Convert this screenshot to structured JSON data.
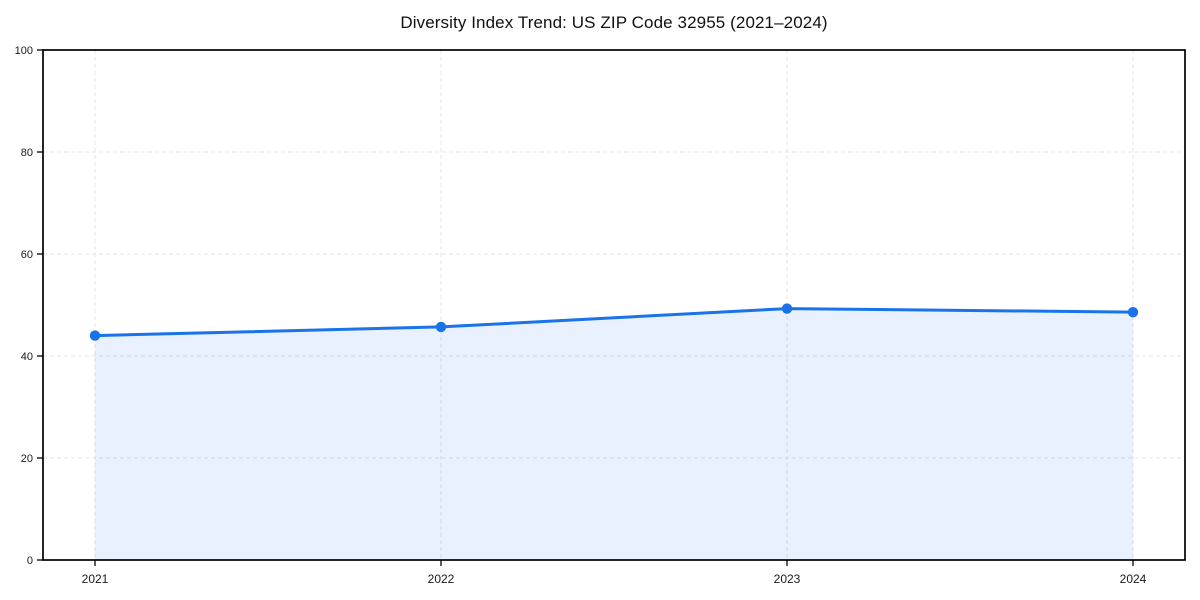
{
  "page": {
    "background": "#ffffff"
  },
  "chart_data": {
    "type": "area",
    "title": "Diversity Index Trend: US ZIP Code 32955 (2021–2024)",
    "series_name": "Diversity Index",
    "categories": [
      "2021",
      "2022",
      "2023",
      "2024"
    ],
    "values": [
      44.0,
      45.7,
      49.3,
      48.6
    ],
    "xlabel": "",
    "ylabel": "",
    "ylim": [
      0,
      100
    ],
    "yticks": [
      0,
      20,
      40,
      60,
      80,
      100
    ],
    "grid": "dashed-both-axes",
    "legend_position": "none",
    "colors": {
      "line": "#1a73e8",
      "marker": "#1a73e8",
      "fill": "#1a73e8",
      "fill_opacity": 0.1,
      "grid": "#e4e4e4",
      "axis": "#000000",
      "text": "#1a1a1a"
    }
  }
}
